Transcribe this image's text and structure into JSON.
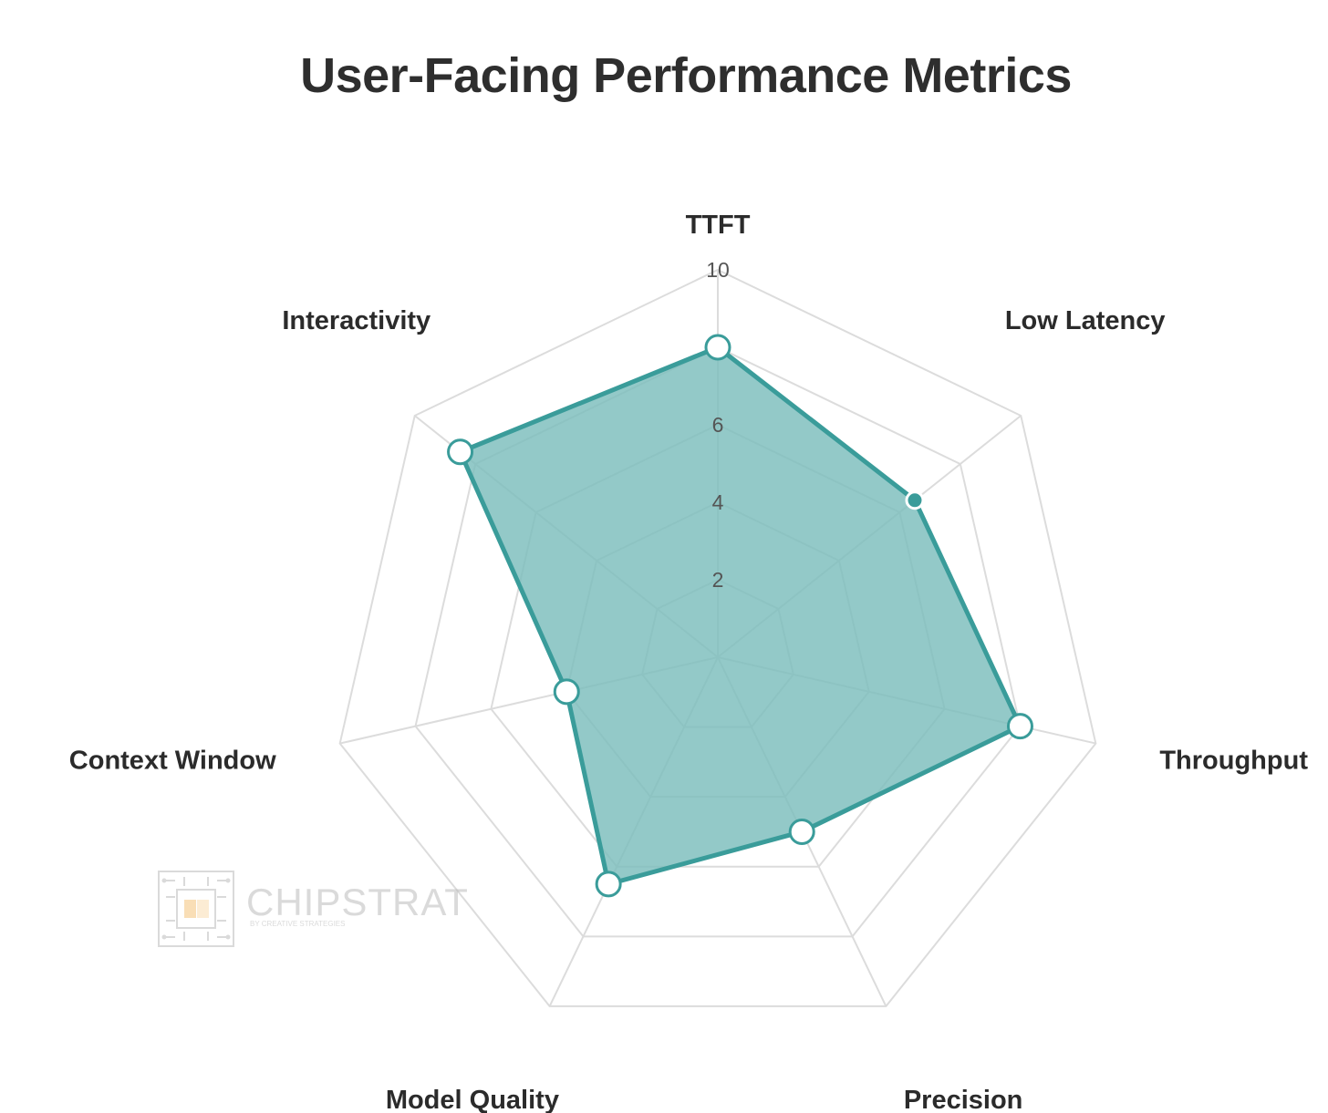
{
  "chart_data": {
    "type": "radar",
    "title": "User-Facing Performance Metrics",
    "axes": [
      "TTFT",
      "Low Latency",
      "Throughput",
      "Precision",
      "Model Quality",
      "Context Window",
      "Interactivity"
    ],
    "values": [
      8,
      6.5,
      8,
      5,
      6.5,
      4,
      8.5
    ],
    "r_range": [
      0,
      10
    ],
    "r_ticks": [
      2,
      4,
      6,
      8,
      10
    ],
    "r_tick_labels": [
      "2",
      "4",
      "6",
      "",
      "10"
    ],
    "fill_color": "#7bbdbc",
    "line_color": "#3a9c9a",
    "grid_color": "#dcdcdc"
  },
  "watermark": {
    "name": "CHIPSTRAT",
    "tagline": "BY CREATIVE STRATEGIES"
  }
}
